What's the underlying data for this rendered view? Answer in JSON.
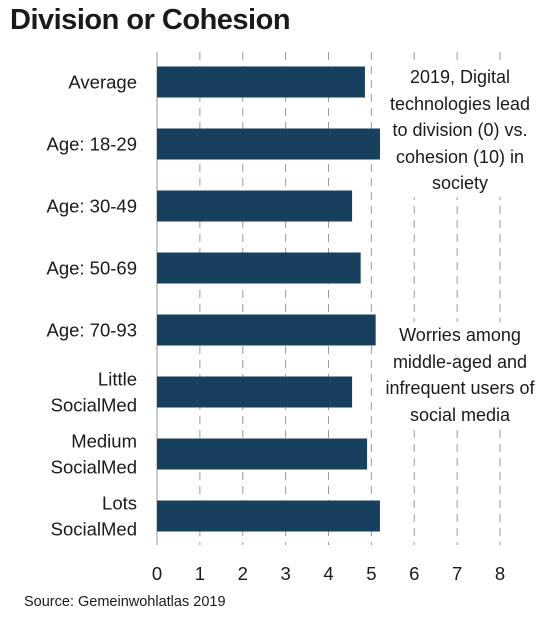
{
  "chart_data": {
    "type": "bar",
    "orientation": "horizontal",
    "title": "Division or Cohesion",
    "categories": [
      "Average",
      "Age: 18-29",
      "Age: 30-49",
      "Age: 50-69",
      "Age: 70-93",
      "Little SocialMed",
      "Medium SocialMed",
      "Lots SocialMed"
    ],
    "category_lines": [
      [
        "Average"
      ],
      [
        "Age: 18-29"
      ],
      [
        "Age: 30-49"
      ],
      [
        "Age: 50-69"
      ],
      [
        "Age: 70-93"
      ],
      [
        "Little",
        "SocialMed"
      ],
      [
        "Medium",
        "SocialMed"
      ],
      [
        "Lots",
        "SocialMed"
      ]
    ],
    "values": [
      4.85,
      5.25,
      4.55,
      4.75,
      5.1,
      4.55,
      4.9,
      5.2
    ],
    "xlim": [
      0,
      8
    ],
    "xticks": [
      "0",
      "1",
      "2",
      "3",
      "4",
      "5",
      "6",
      "7",
      "8"
    ],
    "grid": "vertical dashed",
    "bar_color": "#17405f",
    "annotations": [
      "2019, Digital technologies lead to division (0) vs. cohesion (10) in society",
      "Worries among middle-aged and infrequent users of social media"
    ],
    "source": "Source: Gemeinwohlatlas 2019"
  }
}
